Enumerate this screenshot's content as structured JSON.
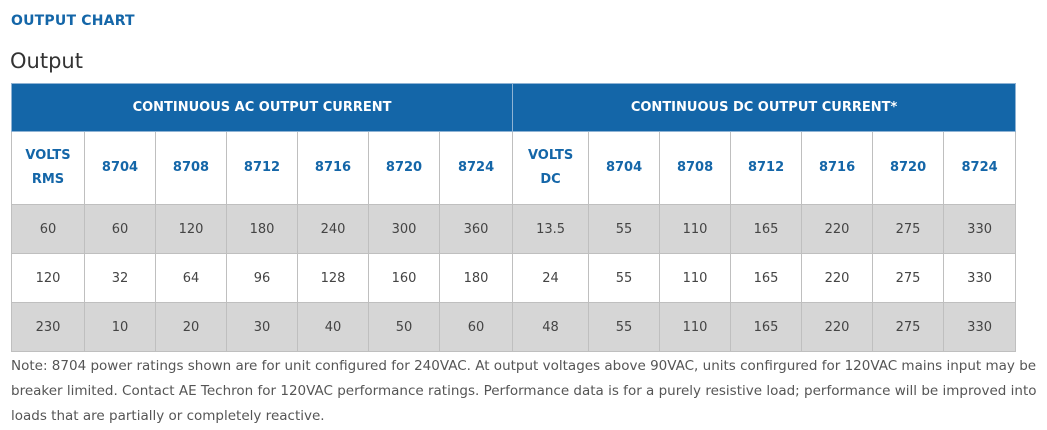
{
  "section_label": "OUTPUT CHART",
  "heading": "Output",
  "table": {
    "groups": [
      {
        "label": "CONTINUOUS AC OUTPUT CURRENT"
      },
      {
        "label": "CONTINUOUS DC OUTPUT CURRENT*"
      }
    ],
    "ac_columns": [
      {
        "line1": "VOLTS",
        "line2": "RMS"
      },
      {
        "line1": "8704"
      },
      {
        "line1": "8708"
      },
      {
        "line1": "8712"
      },
      {
        "line1": "8716"
      },
      {
        "line1": "8720"
      },
      {
        "line1": "8724"
      }
    ],
    "dc_columns": [
      {
        "line1": "VOLTS",
        "line2": "DC"
      },
      {
        "line1": "8704"
      },
      {
        "line1": "8708"
      },
      {
        "line1": "8712"
      },
      {
        "line1": "8716"
      },
      {
        "line1": "8720"
      },
      {
        "line1": "8724"
      }
    ],
    "rows": [
      {
        "ac": [
          "60",
          "60",
          "120",
          "180",
          "240",
          "300",
          "360"
        ],
        "dc": [
          "13.5",
          "55",
          "110",
          "165",
          "220",
          "275",
          "330"
        ]
      },
      {
        "ac": [
          "120",
          "32",
          "64",
          "96",
          "128",
          "160",
          "180"
        ],
        "dc": [
          "24",
          "55",
          "110",
          "165",
          "220",
          "275",
          "330"
        ]
      },
      {
        "ac": [
          "230",
          "10",
          "20",
          "30",
          "40",
          "50",
          "60"
        ],
        "dc": [
          "48",
          "55",
          "110",
          "165",
          "220",
          "275",
          "330"
        ]
      }
    ]
  },
  "note": "Note: 8704 power ratings shown are for unit configured for 240VAC. At output voltages above 90VAC, units confirgured for 120VAC mains input may be breaker limited. Contact AE Techron for 120VAC performance ratings. Performance data is for a purely resistive load; performance will be improved into loads that are partially or completely reactive."
}
